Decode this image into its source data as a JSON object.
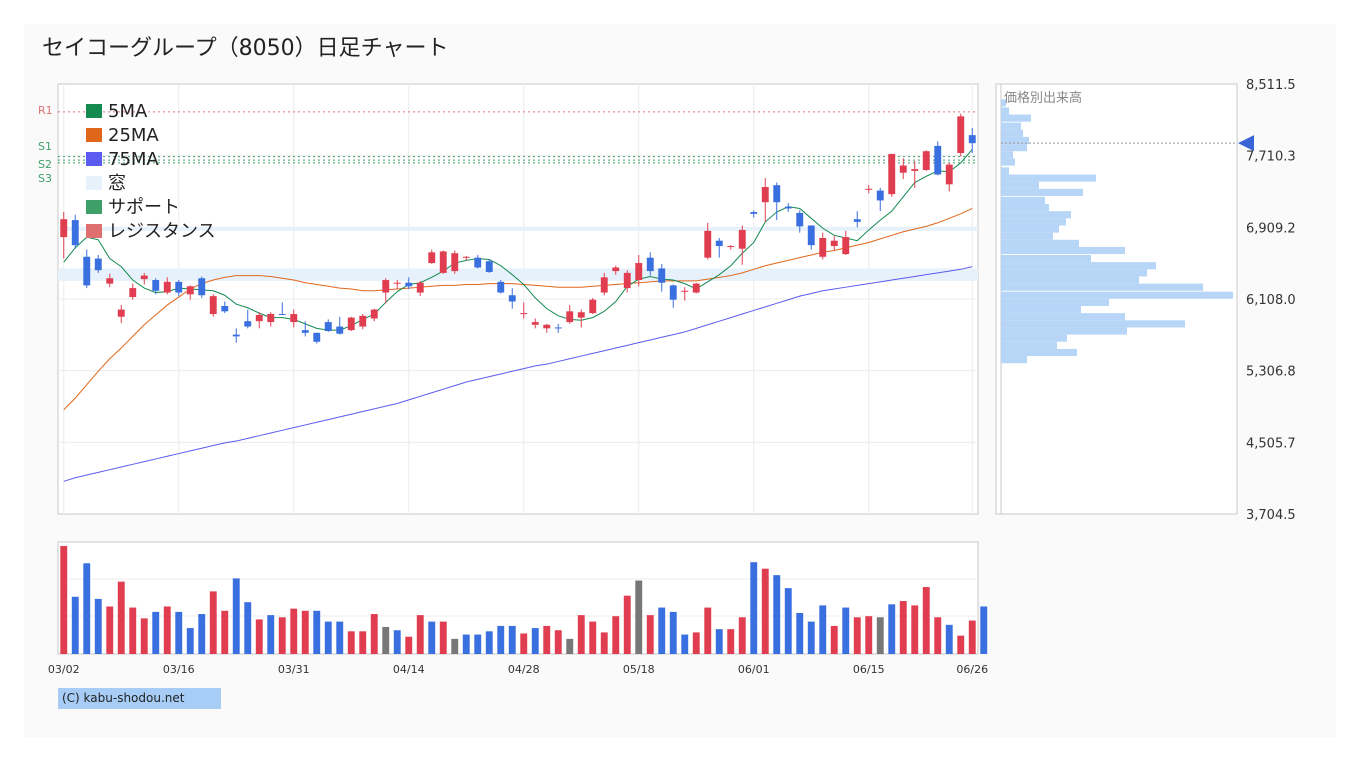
{
  "title": "セイコーグループ（8050）日足チャート",
  "credit": "(C) kabu-shodou.net",
  "profile_label": "価格別出来高",
  "legend": [
    {
      "label": "5MA",
      "color": "#148a50"
    },
    {
      "label": "25MA",
      "color": "#e0661a"
    },
    {
      "label": "75MA",
      "color": "#5b5bf0"
    },
    {
      "label": "窓",
      "color": "#e6f1fb"
    },
    {
      "label": "サポート",
      "color": "#3f9f68"
    },
    {
      "label": "レジスタンス",
      "color": "#e07070"
    }
  ],
  "level_labels": {
    "r1": "R1",
    "s1": "S1",
    "s2": "S2",
    "s3": "S3"
  },
  "y_ticks": [
    "8,511.5",
    "7,710.3",
    "6,909.2",
    "6,108.0",
    "5,306.8",
    "4,505.7",
    "3,704.5"
  ],
  "x_ticks": [
    "03/02",
    "03/16",
    "03/31",
    "04/14",
    "04/28",
    "05/18",
    "06/01",
    "06/15",
    "06/26"
  ],
  "colors": {
    "up": "#e03e50",
    "down": "#3a6fe0",
    "neutral": "#777777",
    "profile": "#b7d5f7"
  },
  "chart_data": {
    "type": "candlestick",
    "ylim": [
      3704.5,
      8511.5
    ],
    "candles": [
      {
        "o": 6800,
        "h": 7080,
        "l": 6560,
        "c": 7000
      },
      {
        "o": 6990,
        "h": 7050,
        "l": 6680,
        "c": 6710
      },
      {
        "o": 6580,
        "h": 6660,
        "l": 6230,
        "c": 6260
      },
      {
        "o": 6560,
        "h": 6600,
        "l": 6400,
        "c": 6430
      },
      {
        "o": 6280,
        "h": 6390,
        "l": 6240,
        "c": 6340
      },
      {
        "o": 5910,
        "h": 6040,
        "l": 5840,
        "c": 5990
      },
      {
        "o": 6130,
        "h": 6280,
        "l": 6100,
        "c": 6230
      },
      {
        "o": 6330,
        "h": 6400,
        "l": 6270,
        "c": 6370
      },
      {
        "o": 6320,
        "h": 6340,
        "l": 6160,
        "c": 6200
      },
      {
        "o": 6180,
        "h": 6350,
        "l": 6160,
        "c": 6300
      },
      {
        "o": 6300,
        "h": 6320,
        "l": 6140,
        "c": 6180
      },
      {
        "o": 6160,
        "h": 6260,
        "l": 6100,
        "c": 6250
      },
      {
        "o": 6340,
        "h": 6360,
        "l": 6120,
        "c": 6150
      },
      {
        "o": 5940,
        "h": 6160,
        "l": 5910,
        "c": 6140
      },
      {
        "o": 6030,
        "h": 6080,
        "l": 5950,
        "c": 5970
      },
      {
        "o": 5710,
        "h": 5780,
        "l": 5620,
        "c": 5690
      },
      {
        "o": 5860,
        "h": 5990,
        "l": 5780,
        "c": 5800
      },
      {
        "o": 5860,
        "h": 5960,
        "l": 5780,
        "c": 5930
      },
      {
        "o": 5850,
        "h": 5960,
        "l": 5800,
        "c": 5940
      },
      {
        "o": 5940,
        "h": 6070,
        "l": 5930,
        "c": 5930
      },
      {
        "o": 5850,
        "h": 5990,
        "l": 5790,
        "c": 5940
      },
      {
        "o": 5760,
        "h": 5860,
        "l": 5690,
        "c": 5730
      },
      {
        "o": 5730,
        "h": 5730,
        "l": 5610,
        "c": 5630
      },
      {
        "o": 5850,
        "h": 5880,
        "l": 5740,
        "c": 5750
      },
      {
        "o": 5800,
        "h": 5910,
        "l": 5710,
        "c": 5720
      },
      {
        "o": 5760,
        "h": 5910,
        "l": 5750,
        "c": 5900
      },
      {
        "o": 5800,
        "h": 5940,
        "l": 5770,
        "c": 5920
      },
      {
        "o": 5890,
        "h": 6000,
        "l": 5860,
        "c": 5990
      },
      {
        "o": 6180,
        "h": 6340,
        "l": 6060,
        "c": 6320
      },
      {
        "o": 6290,
        "h": 6320,
        "l": 6220,
        "c": 6290
      },
      {
        "o": 6290,
        "h": 6350,
        "l": 6220,
        "c": 6250
      },
      {
        "o": 6180,
        "h": 6310,
        "l": 6140,
        "c": 6290
      },
      {
        "o": 6510,
        "h": 6660,
        "l": 6500,
        "c": 6630
      },
      {
        "o": 6400,
        "h": 6650,
        "l": 6390,
        "c": 6640
      },
      {
        "o": 6420,
        "h": 6650,
        "l": 6390,
        "c": 6620
      },
      {
        "o": 6580,
        "h": 6590,
        "l": 6540,
        "c": 6580
      },
      {
        "o": 6570,
        "h": 6600,
        "l": 6450,
        "c": 6460
      },
      {
        "o": 6530,
        "h": 6550,
        "l": 6400,
        "c": 6410
      },
      {
        "o": 6300,
        "h": 6320,
        "l": 6170,
        "c": 6180
      },
      {
        "o": 6150,
        "h": 6230,
        "l": 6000,
        "c": 6080
      },
      {
        "o": 5940,
        "h": 6070,
        "l": 5890,
        "c": 5950
      },
      {
        "o": 5820,
        "h": 5890,
        "l": 5780,
        "c": 5850
      },
      {
        "o": 5780,
        "h": 5830,
        "l": 5730,
        "c": 5820
      },
      {
        "o": 5790,
        "h": 5830,
        "l": 5730,
        "c": 5780
      },
      {
        "o": 5850,
        "h": 6040,
        "l": 5830,
        "c": 5970
      },
      {
        "o": 5900,
        "h": 5990,
        "l": 5790,
        "c": 5960
      },
      {
        "o": 5950,
        "h": 6120,
        "l": 5940,
        "c": 6100
      },
      {
        "o": 6180,
        "h": 6400,
        "l": 6150,
        "c": 6350
      },
      {
        "o": 6420,
        "h": 6480,
        "l": 6380,
        "c": 6460
      },
      {
        "o": 6230,
        "h": 6430,
        "l": 6180,
        "c": 6400
      },
      {
        "o": 6320,
        "h": 6600,
        "l": 6250,
        "c": 6510
      },
      {
        "o": 6570,
        "h": 6630,
        "l": 6370,
        "c": 6420
      },
      {
        "o": 6450,
        "h": 6500,
        "l": 6190,
        "c": 6290
      },
      {
        "o": 6260,
        "h": 6270,
        "l": 6010,
        "c": 6100
      },
      {
        "o": 6200,
        "h": 6240,
        "l": 6090,
        "c": 6200
      },
      {
        "o": 6180,
        "h": 6290,
        "l": 6170,
        "c": 6280
      },
      {
        "o": 6570,
        "h": 6960,
        "l": 6550,
        "c": 6870
      },
      {
        "o": 6760,
        "h": 6790,
        "l": 6570,
        "c": 6700
      },
      {
        "o": 6690,
        "h": 6710,
        "l": 6660,
        "c": 6700
      },
      {
        "o": 6670,
        "h": 6930,
        "l": 6490,
        "c": 6880
      },
      {
        "o": 7080,
        "h": 7100,
        "l": 7020,
        "c": 7060
      },
      {
        "o": 7190,
        "h": 7460,
        "l": 6970,
        "c": 7360
      },
      {
        "o": 7380,
        "h": 7410,
        "l": 6990,
        "c": 7190
      },
      {
        "o": 7140,
        "h": 7180,
        "l": 7080,
        "c": 7120
      },
      {
        "o": 7070,
        "h": 7100,
        "l": 6850,
        "c": 6920
      },
      {
        "o": 6930,
        "h": 6930,
        "l": 6660,
        "c": 6710
      },
      {
        "o": 6580,
        "h": 6850,
        "l": 6550,
        "c": 6790
      },
      {
        "o": 6700,
        "h": 6810,
        "l": 6650,
        "c": 6760
      },
      {
        "o": 6610,
        "h": 6870,
        "l": 6600,
        "c": 6800
      },
      {
        "o": 7000,
        "h": 7090,
        "l": 6910,
        "c": 6970
      },
      {
        "o": 7330,
        "h": 7380,
        "l": 7290,
        "c": 7340
      },
      {
        "o": 7320,
        "h": 7350,
        "l": 7090,
        "c": 7210
      },
      {
        "o": 7280,
        "h": 7730,
        "l": 7250,
        "c": 7730
      },
      {
        "o": 7520,
        "h": 7680,
        "l": 7450,
        "c": 7600
      },
      {
        "o": 7540,
        "h": 7650,
        "l": 7350,
        "c": 7560
      },
      {
        "o": 7550,
        "h": 7770,
        "l": 7540,
        "c": 7760
      },
      {
        "o": 7820,
        "h": 7870,
        "l": 7490,
        "c": 7500
      },
      {
        "o": 7390,
        "h": 7630,
        "l": 7310,
        "c": 7610
      },
      {
        "o": 7740,
        "h": 8180,
        "l": 7700,
        "c": 8150
      },
      {
        "o": 7940,
        "h": 8020,
        "l": 7740,
        "c": 7850
      }
    ],
    "ma5": [
      6520,
      6680,
      6800,
      6770,
      6560,
      6470,
      6320,
      6230,
      6180,
      6190,
      6230,
      6220,
      6210,
      6200,
      6150,
      6050,
      6010,
      5950,
      5900,
      5900,
      5880,
      5830,
      5780,
      5760,
      5760,
      5810,
      5880,
      5940,
      6070,
      6190,
      6270,
      6290,
      6350,
      6420,
      6510,
      6540,
      6560,
      6550,
      6480,
      6380,
      6270,
      6120,
      6000,
      5920,
      5880,
      5870,
      5900,
      5970,
      6080,
      6250,
      6330,
      6360,
      6330,
      6320,
      6280,
      6220,
      6300,
      6380,
      6480,
      6620,
      6740,
      6970,
      7080,
      7140,
      7120,
      7010,
      6900,
      6820,
      6790,
      6760,
      6880,
      6990,
      7090,
      7250,
      7410,
      7480,
      7540,
      7530,
      7630,
      7780
    ],
    "ma25": [
      4870,
      5000,
      5150,
      5300,
      5440,
      5560,
      5690,
      5820,
      5930,
      6040,
      6130,
      6220,
      6280,
      6320,
      6350,
      6370,
      6370,
      6370,
      6360,
      6340,
      6320,
      6290,
      6270,
      6250,
      6230,
      6220,
      6200,
      6200,
      6210,
      6220,
      6230,
      6240,
      6250,
      6260,
      6260,
      6270,
      6270,
      6280,
      6280,
      6280,
      6270,
      6260,
      6250,
      6240,
      6240,
      6240,
      6250,
      6260,
      6270,
      6280,
      6290,
      6300,
      6310,
      6310,
      6310,
      6310,
      6330,
      6350,
      6370,
      6400,
      6440,
      6480,
      6510,
      6540,
      6570,
      6600,
      6630,
      6650,
      6680,
      6710,
      6740,
      6780,
      6820,
      6860,
      6890,
      6920,
      6960,
      7010,
      7060,
      7120
    ],
    "ma75": [
      4070,
      4110,
      4140,
      4170,
      4200,
      4230,
      4260,
      4290,
      4320,
      4350,
      4380,
      4410,
      4440,
      4470,
      4500,
      4520,
      4550,
      4580,
      4610,
      4640,
      4670,
      4700,
      4730,
      4760,
      4790,
      4820,
      4850,
      4880,
      4910,
      4940,
      4980,
      5020,
      5060,
      5100,
      5140,
      5180,
      5210,
      5240,
      5270,
      5300,
      5330,
      5360,
      5380,
      5410,
      5440,
      5470,
      5500,
      5530,
      5560,
      5590,
      5620,
      5650,
      5680,
      5710,
      5740,
      5780,
      5820,
      5860,
      5900,
      5940,
      5980,
      6020,
      6060,
      6100,
      6140,
      6170,
      6200,
      6220,
      6240,
      6260,
      6280,
      6300,
      6320,
      6340,
      6360,
      6380,
      6400,
      6420,
      6440,
      6470
    ],
    "volume": [
      {
        "v": 100,
        "d": "u"
      },
      {
        "v": 53,
        "d": "d"
      },
      {
        "v": 84,
        "d": "d"
      },
      {
        "v": 51,
        "d": "d"
      },
      {
        "v": 44,
        "d": "u"
      },
      {
        "v": 67,
        "d": "u"
      },
      {
        "v": 43,
        "d": "u"
      },
      {
        "v": 33,
        "d": "u"
      },
      {
        "v": 39,
        "d": "d"
      },
      {
        "v": 44,
        "d": "u"
      },
      {
        "v": 39,
        "d": "d"
      },
      {
        "v": 24,
        "d": "d"
      },
      {
        "v": 37,
        "d": "d"
      },
      {
        "v": 58,
        "d": "u"
      },
      {
        "v": 40,
        "d": "u"
      },
      {
        "v": 70,
        "d": "d"
      },
      {
        "v": 48,
        "d": "d"
      },
      {
        "v": 32,
        "d": "u"
      },
      {
        "v": 36,
        "d": "d"
      },
      {
        "v": 34,
        "d": "u"
      },
      {
        "v": 42,
        "d": "u"
      },
      {
        "v": 40,
        "d": "u"
      },
      {
        "v": 40,
        "d": "d"
      },
      {
        "v": 30,
        "d": "d"
      },
      {
        "v": 30,
        "d": "d"
      },
      {
        "v": 21,
        "d": "u"
      },
      {
        "v": 21,
        "d": "u"
      },
      {
        "v": 37,
        "d": "u"
      },
      {
        "v": 25,
        "d": "n"
      },
      {
        "v": 22,
        "d": "d"
      },
      {
        "v": 16,
        "d": "u"
      },
      {
        "v": 36,
        "d": "u"
      },
      {
        "v": 30,
        "d": "d"
      },
      {
        "v": 30,
        "d": "u"
      },
      {
        "v": 14,
        "d": "n"
      },
      {
        "v": 18,
        "d": "d"
      },
      {
        "v": 18,
        "d": "d"
      },
      {
        "v": 21,
        "d": "d"
      },
      {
        "v": 26,
        "d": "d"
      },
      {
        "v": 26,
        "d": "d"
      },
      {
        "v": 19,
        "d": "u"
      },
      {
        "v": 24,
        "d": "d"
      },
      {
        "v": 26,
        "d": "u"
      },
      {
        "v": 22,
        "d": "u"
      },
      {
        "v": 14,
        "d": "n"
      },
      {
        "v": 36,
        "d": "u"
      },
      {
        "v": 30,
        "d": "u"
      },
      {
        "v": 20,
        "d": "u"
      },
      {
        "v": 35,
        "d": "u"
      },
      {
        "v": 54,
        "d": "u"
      },
      {
        "v": 68,
        "d": "n"
      },
      {
        "v": 36,
        "d": "u"
      },
      {
        "v": 43,
        "d": "d"
      },
      {
        "v": 39,
        "d": "d"
      },
      {
        "v": 18,
        "d": "d"
      },
      {
        "v": 20,
        "d": "u"
      },
      {
        "v": 43,
        "d": "u"
      },
      {
        "v": 23,
        "d": "d"
      },
      {
        "v": 23,
        "d": "u"
      },
      {
        "v": 34,
        "d": "u"
      },
      {
        "v": 85,
        "d": "d"
      },
      {
        "v": 79,
        "d": "u"
      },
      {
        "v": 73,
        "d": "d"
      },
      {
        "v": 61,
        "d": "d"
      },
      {
        "v": 38,
        "d": "d"
      },
      {
        "v": 30,
        "d": "d"
      },
      {
        "v": 45,
        "d": "d"
      },
      {
        "v": 26,
        "d": "u"
      },
      {
        "v": 43,
        "d": "d"
      },
      {
        "v": 34,
        "d": "u"
      },
      {
        "v": 35,
        "d": "u"
      },
      {
        "v": 34,
        "d": "n"
      },
      {
        "v": 46,
        "d": "d"
      },
      {
        "v": 49,
        "d": "u"
      },
      {
        "v": 45,
        "d": "u"
      },
      {
        "v": 62,
        "d": "u"
      },
      {
        "v": 34,
        "d": "u"
      },
      {
        "v": 27,
        "d": "d"
      },
      {
        "v": 17,
        "d": "u"
      },
      {
        "v": 31,
        "d": "u"
      },
      {
        "v": 44,
        "d": "d"
      }
    ],
    "volume_profile": [
      {
        "p": 8300,
        "v": 5
      },
      {
        "p": 8210,
        "v": 8
      },
      {
        "p": 8130,
        "v": 30
      },
      {
        "p": 8040,
        "v": 20
      },
      {
        "p": 7960,
        "v": 22
      },
      {
        "p": 7880,
        "v": 28
      },
      {
        "p": 7800,
        "v": 26
      },
      {
        "p": 7720,
        "v": 12
      },
      {
        "p": 7640,
        "v": 14
      },
      {
        "p": 7540,
        "v": 8
      },
      {
        "p": 7460,
        "v": 95
      },
      {
        "p": 7380,
        "v": 38
      },
      {
        "p": 7300,
        "v": 82
      },
      {
        "p": 7210,
        "v": 44
      },
      {
        "p": 7130,
        "v": 48
      },
      {
        "p": 7050,
        "v": 70
      },
      {
        "p": 6970,
        "v": 65
      },
      {
        "p": 6890,
        "v": 58
      },
      {
        "p": 6810,
        "v": 52
      },
      {
        "p": 6730,
        "v": 78
      },
      {
        "p": 6650,
        "v": 124
      },
      {
        "p": 6560,
        "v": 90
      },
      {
        "p": 6480,
        "v": 155
      },
      {
        "p": 6400,
        "v": 146
      },
      {
        "p": 6320,
        "v": 138
      },
      {
        "p": 6240,
        "v": 202
      },
      {
        "p": 6150,
        "v": 232
      },
      {
        "p": 6070,
        "v": 108
      },
      {
        "p": 5990,
        "v": 80
      },
      {
        "p": 5910,
        "v": 124
      },
      {
        "p": 5830,
        "v": 184
      },
      {
        "p": 5750,
        "v": 126
      },
      {
        "p": 5670,
        "v": 66
      },
      {
        "p": 5590,
        "v": 56
      },
      {
        "p": 5510,
        "v": 76
      },
      {
        "p": 5430,
        "v": 26
      }
    ],
    "levels": {
      "r1": 8200,
      "s1": 7700,
      "s2": 7660,
      "s3": 7630
    },
    "gap_zones": [
      [
        6310,
        6450
      ],
      [
        6870,
        6910
      ]
    ],
    "current_price": 7850
  }
}
